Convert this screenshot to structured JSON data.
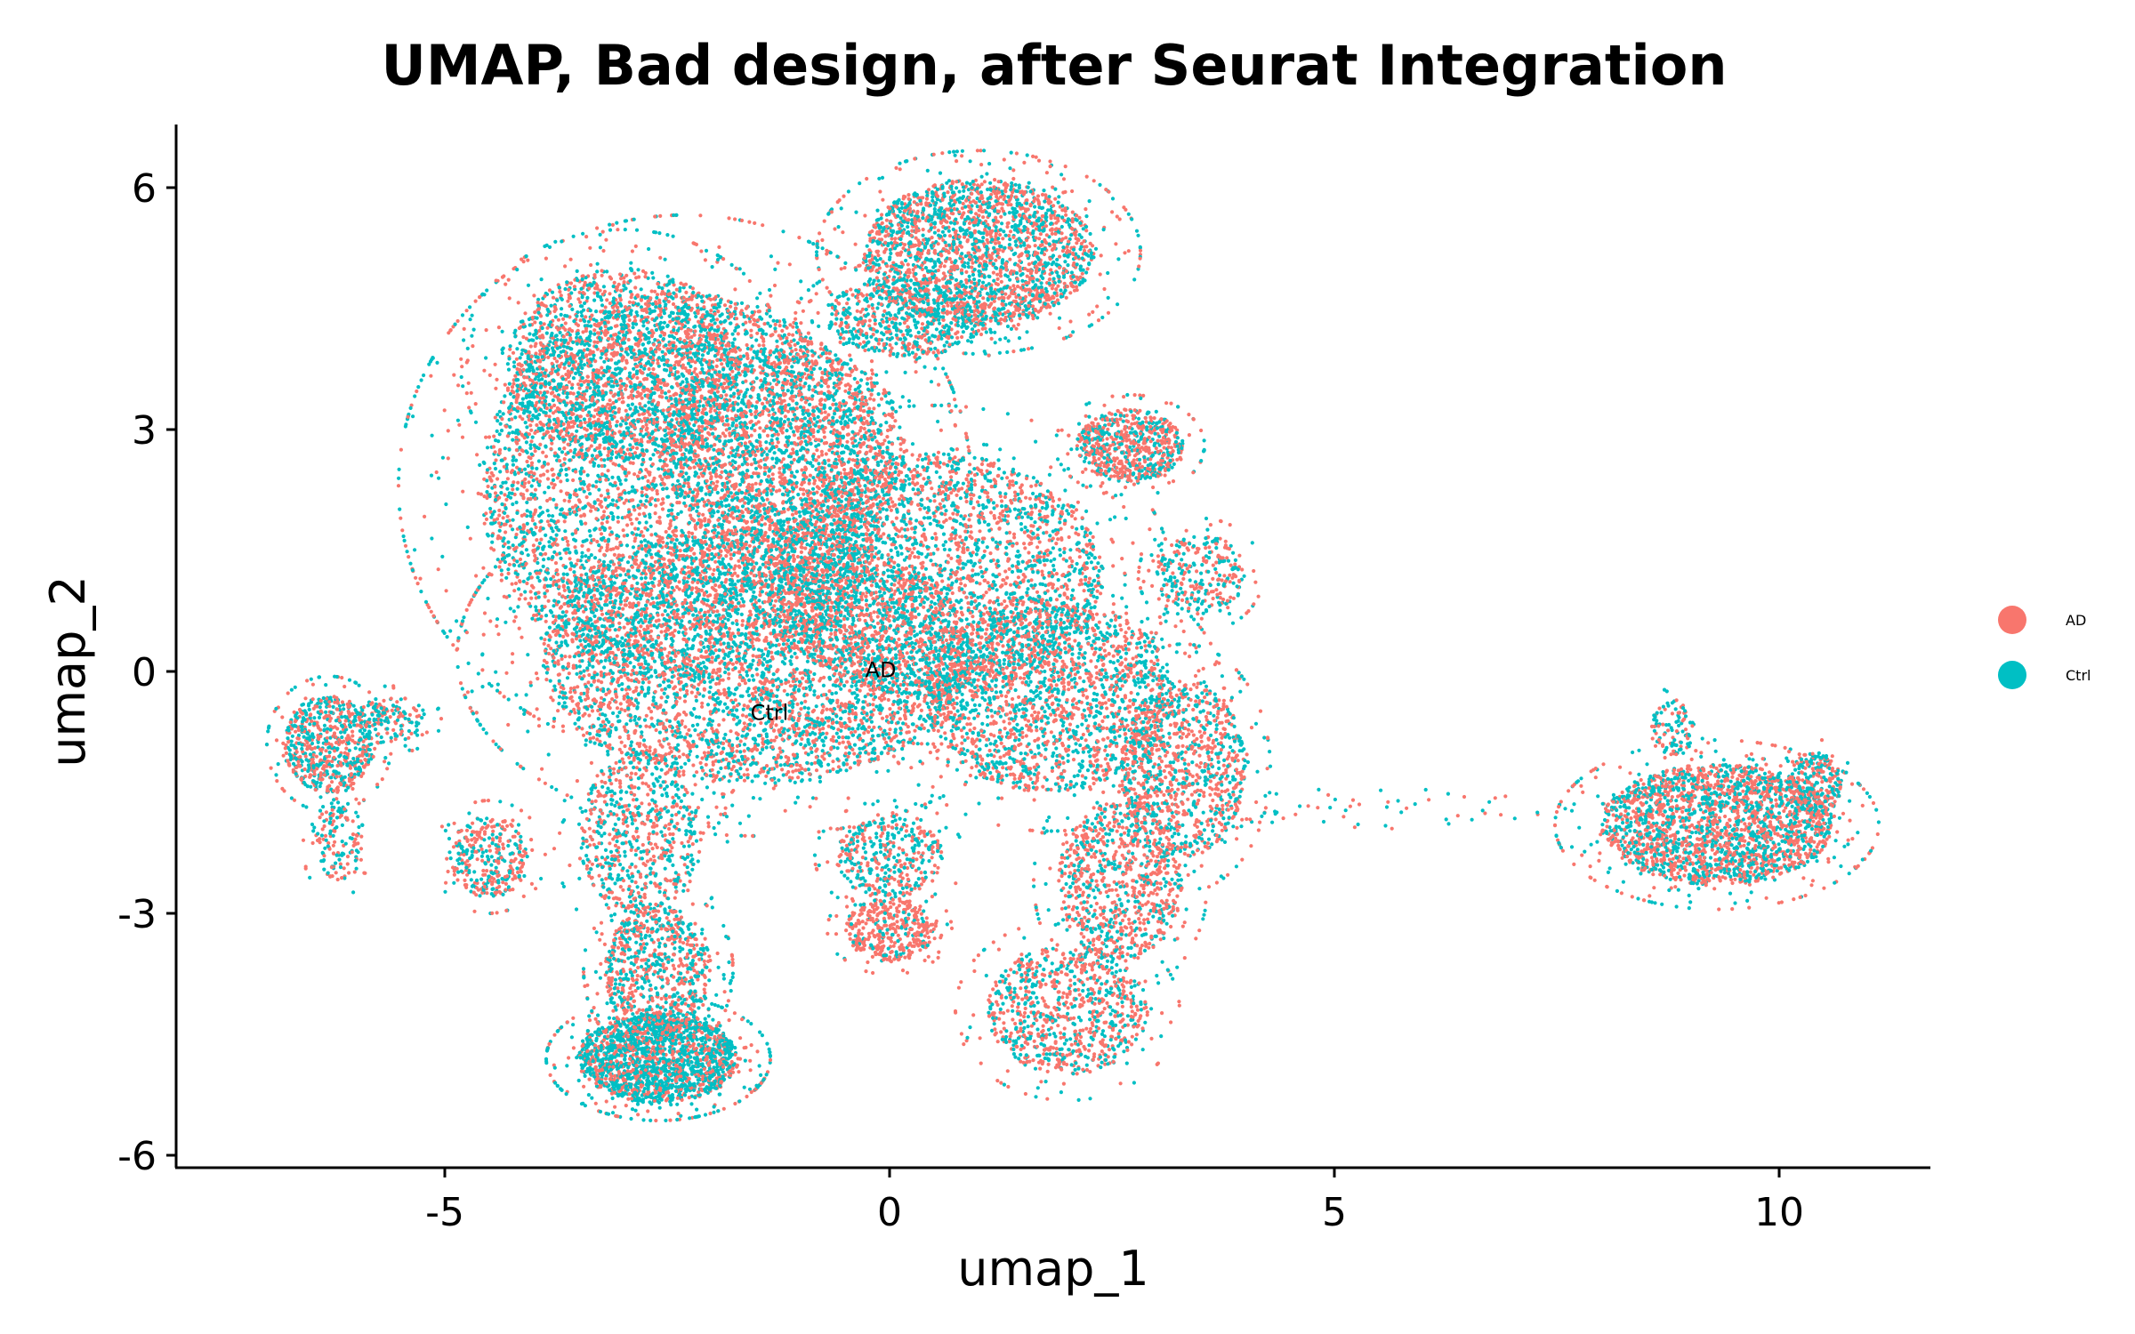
{
  "chart_data": {
    "type": "scatter",
    "title": "UMAP, Bad design, after Seurat Integration",
    "xlabel": "umap_1",
    "ylabel": "umap_2",
    "xlim": [
      -8,
      11.7
    ],
    "ylim": [
      -6.2,
      6.8
    ],
    "xticks": [
      -5,
      0,
      5,
      10
    ],
    "xtick_labels": [
      "-5",
      "0",
      "5",
      "10"
    ],
    "yticks": [
      -6,
      -3,
      0,
      3,
      6
    ],
    "ytick_labels": [
      "-6",
      "-3",
      "0",
      "3",
      "6"
    ],
    "grid": false,
    "legend_position": "right",
    "series": [
      {
        "name": "AD",
        "color": "#F8766D"
      },
      {
        "name": "Ctrl",
        "color": "#00BFC4"
      }
    ],
    "annotations": [
      {
        "text": "AD",
        "x": -0.1,
        "y": -0.07
      },
      {
        "text": "Ctrl",
        "x": -1.35,
        "y": -0.6
      }
    ],
    "clusters": [
      {
        "cx": -2.3,
        "cy": 2.3,
        "rx": 2.3,
        "ry": 2.4,
        "n": 5200,
        "ad": 0.5
      },
      {
        "cx": -1.5,
        "cy": 0.2,
        "rx": 2.4,
        "ry": 1.6,
        "n": 4500,
        "ad": 0.5
      },
      {
        "cx": -3.0,
        "cy": 3.8,
        "rx": 1.3,
        "ry": 1.2,
        "n": 1800,
        "ad": 0.5
      },
      {
        "cx": -1.2,
        "cy": 2.8,
        "rx": 1.4,
        "ry": 1.2,
        "n": 1600,
        "ad": 0.5
      },
      {
        "cx": 0.5,
        "cy": 1.2,
        "rx": 1.9,
        "ry": 1.5,
        "n": 3000,
        "ad": 0.5
      },
      {
        "cx": 1.8,
        "cy": -0.3,
        "rx": 1.4,
        "ry": 1.2,
        "n": 2000,
        "ad": 0.5
      },
      {
        "cx": 1.0,
        "cy": 5.2,
        "rx": 1.3,
        "ry": 0.9,
        "n": 2400,
        "ad": 0.55
      },
      {
        "cx": 0.2,
        "cy": 4.4,
        "rx": 0.9,
        "ry": 0.5,
        "n": 600,
        "ad": 0.4
      },
      {
        "cx": 2.7,
        "cy": 2.8,
        "rx": 0.6,
        "ry": 0.45,
        "n": 700,
        "ad": 0.6
      },
      {
        "cx": 3.5,
        "cy": 1.2,
        "rx": 0.5,
        "ry": 0.5,
        "n": 300,
        "ad": 0.5
      },
      {
        "cx": 3.3,
        "cy": -1.2,
        "rx": 0.7,
        "ry": 1.1,
        "n": 1100,
        "ad": 0.6
      },
      {
        "cx": 2.6,
        "cy": -2.6,
        "rx": 0.7,
        "ry": 1.0,
        "n": 900,
        "ad": 0.6
      },
      {
        "cx": 2.0,
        "cy": -4.2,
        "rx": 0.9,
        "ry": 0.8,
        "n": 900,
        "ad": 0.6
      },
      {
        "cx": 0.0,
        "cy": -3.2,
        "rx": 0.5,
        "ry": 0.4,
        "n": 400,
        "ad": 0.8
      },
      {
        "cx": 0.0,
        "cy": -2.3,
        "rx": 0.6,
        "ry": 0.5,
        "n": 400,
        "ad": 0.4
      },
      {
        "cx": -2.6,
        "cy": -4.8,
        "rx": 0.9,
        "ry": 0.55,
        "n": 2000,
        "ad": 0.35
      },
      {
        "cx": -2.6,
        "cy": -3.7,
        "rx": 0.6,
        "ry": 0.8,
        "n": 800,
        "ad": 0.5
      },
      {
        "cx": -2.8,
        "cy": -2.0,
        "rx": 0.7,
        "ry": 1.0,
        "n": 700,
        "ad": 0.5
      },
      {
        "cx": -6.3,
        "cy": -0.9,
        "rx": 0.5,
        "ry": 0.6,
        "n": 700,
        "ad": 0.5
      },
      {
        "cx": -6.2,
        "cy": -2.1,
        "rx": 0.3,
        "ry": 0.5,
        "n": 150,
        "ad": 0.5
      },
      {
        "cx": -5.6,
        "cy": -0.6,
        "rx": 0.4,
        "ry": 0.3,
        "n": 150,
        "ad": 0.4
      },
      {
        "cx": -4.5,
        "cy": -2.3,
        "rx": 0.45,
        "ry": 0.5,
        "n": 350,
        "ad": 0.6
      },
      {
        "cx": 9.3,
        "cy": -1.9,
        "rx": 1.3,
        "ry": 0.75,
        "n": 2400,
        "ad": 0.55
      },
      {
        "cx": 10.4,
        "cy": -1.4,
        "rx": 0.3,
        "ry": 0.4,
        "n": 300,
        "ad": 0.5
      },
      {
        "cx": 8.8,
        "cy": -0.7,
        "rx": 0.25,
        "ry": 0.35,
        "n": 100,
        "ad": 0.4
      },
      {
        "cx": 5.5,
        "cy": -1.7,
        "rx": 2.0,
        "ry": 0.25,
        "n": 60,
        "ad": 0.5
      }
    ]
  }
}
